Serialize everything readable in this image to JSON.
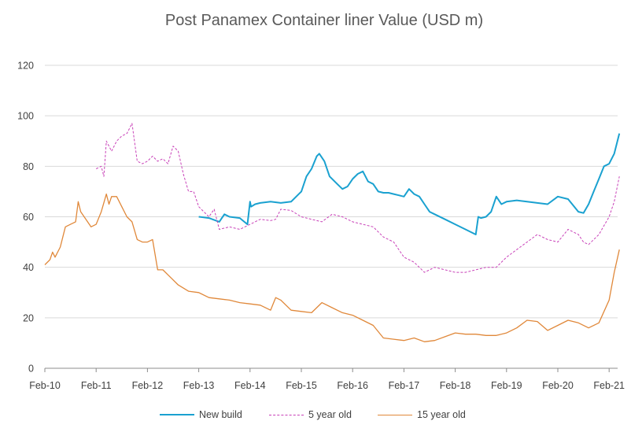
{
  "chart_data": {
    "type": "line",
    "title": "Post Panamex Container liner Value (USD m)",
    "ylim": [
      0,
      120
    ],
    "y_ticks": [
      "0",
      "20",
      "40",
      "60",
      "80",
      "100",
      "120"
    ],
    "x_tick_labels": [
      "Feb-10",
      "Feb-11",
      "Feb-12",
      "Feb-13",
      "Feb-14",
      "Feb-15",
      "Feb-16",
      "Feb-17",
      "Feb-18",
      "Feb-19",
      "Feb-20",
      "Feb-21"
    ],
    "xlim": [
      0,
      11.2
    ],
    "grid": "horizontal",
    "legend_position": "bottom",
    "series": [
      {
        "name": "New build",
        "color": "#1aa1d0",
        "style": "solid",
        "x": [
          3.0,
          3.2,
          3.4,
          3.5,
          3.6,
          3.8,
          3.95,
          4.0,
          4.02,
          4.1,
          4.2,
          4.4,
          4.6,
          4.8,
          5.0,
          5.1,
          5.2,
          5.3,
          5.35,
          5.45,
          5.55,
          5.7,
          5.8,
          5.9,
          6.0,
          6.1,
          6.2,
          6.3,
          6.4,
          6.5,
          6.6,
          6.7,
          6.8,
          6.9,
          7.0,
          7.1,
          7.2,
          7.3,
          7.4,
          7.5,
          7.6,
          7.8,
          8.0,
          8.2,
          8.4,
          8.45,
          8.5,
          8.6,
          8.7,
          8.8,
          8.9,
          9.0,
          9.2,
          9.4,
          9.6,
          9.8,
          10.0,
          10.2,
          10.4,
          10.5,
          10.6,
          10.7,
          10.8,
          10.9,
          11.0,
          11.1,
          11.2
        ],
        "y": [
          60,
          59.5,
          58,
          61,
          60,
          59.5,
          57,
          66,
          64,
          65,
          65.5,
          66,
          65.5,
          66,
          70,
          76,
          79,
          84,
          85,
          82,
          76,
          73,
          71,
          72,
          75,
          77,
          78,
          74,
          73,
          70,
          69.5,
          69.5,
          69,
          68.5,
          68,
          71,
          69,
          68,
          65,
          62,
          61,
          59,
          57,
          55,
          53,
          60,
          59.5,
          60,
          62,
          68,
          65,
          66,
          66.5,
          66,
          65.5,
          65,
          68,
          67,
          62,
          61.5,
          65,
          70,
          75,
          80,
          81,
          85,
          93
        ]
      },
      {
        "name": "5 year old",
        "color": "#c840b8",
        "style": "dashed",
        "x": [
          1.0,
          1.1,
          1.15,
          1.2,
          1.3,
          1.4,
          1.5,
          1.6,
          1.65,
          1.7,
          1.8,
          1.9,
          2.0,
          2.1,
          2.2,
          2.3,
          2.4,
          2.5,
          2.6,
          2.7,
          2.8,
          2.9,
          3.0,
          3.1,
          3.2,
          3.3,
          3.4,
          3.6,
          3.8,
          4.0,
          4.2,
          4.4,
          4.5,
          4.6,
          4.8,
          5.0,
          5.2,
          5.4,
          5.6,
          5.8,
          6.0,
          6.2,
          6.4,
          6.6,
          6.8,
          7.0,
          7.2,
          7.4,
          7.6,
          7.8,
          8.0,
          8.2,
          8.4,
          8.6,
          8.8,
          9.0,
          9.2,
          9.4,
          9.6,
          9.8,
          10.0,
          10.2,
          10.4,
          10.5,
          10.6,
          10.8,
          11.0,
          11.1,
          11.2
        ],
        "y": [
          79,
          80,
          76,
          90,
          86,
          90,
          92,
          93,
          95,
          97,
          82,
          81,
          82,
          84,
          82,
          83,
          81,
          88,
          86,
          77,
          70,
          70,
          64,
          62,
          60,
          63,
          55,
          56,
          55,
          57,
          59,
          58.5,
          59,
          63,
          62.5,
          60,
          59,
          58,
          61,
          60,
          58,
          57,
          56,
          52,
          50,
          44,
          42,
          38,
          40,
          39,
          38,
          38,
          39,
          40,
          40,
          44,
          47,
          50,
          53,
          51,
          50,
          55,
          53,
          50,
          49,
          53,
          60,
          66,
          76
        ]
      },
      {
        "name": "15 year old",
        "color": "#e0883a",
        "style": "solid",
        "x": [
          0.0,
          0.1,
          0.15,
          0.2,
          0.3,
          0.4,
          0.5,
          0.6,
          0.65,
          0.7,
          0.8,
          0.9,
          1.0,
          1.1,
          1.2,
          1.25,
          1.3,
          1.4,
          1.5,
          1.6,
          1.7,
          1.8,
          1.9,
          2.0,
          2.1,
          2.2,
          2.3,
          2.4,
          2.5,
          2.6,
          2.8,
          3.0,
          3.2,
          3.4,
          3.6,
          3.8,
          4.0,
          4.2,
          4.4,
          4.5,
          4.6,
          4.8,
          5.0,
          5.2,
          5.4,
          5.6,
          5.8,
          6.0,
          6.2,
          6.4,
          6.6,
          6.8,
          7.0,
          7.2,
          7.4,
          7.6,
          7.8,
          8.0,
          8.2,
          8.4,
          8.6,
          8.8,
          9.0,
          9.2,
          9.4,
          9.6,
          9.8,
          10.0,
          10.2,
          10.4,
          10.6,
          10.8,
          11.0,
          11.1,
          11.2
        ],
        "y": [
          41,
          43,
          46,
          44,
          48,
          56,
          57,
          58,
          66,
          62,
          59,
          56,
          57,
          62,
          69,
          65,
          68,
          68,
          64,
          60,
          58,
          51,
          50,
          50,
          51,
          39,
          39,
          37,
          35,
          33,
          30.5,
          30,
          28,
          27.5,
          27,
          26,
          25.5,
          25,
          23,
          28,
          27,
          23,
          22.5,
          22,
          26,
          24,
          22,
          21,
          19,
          17,
          12,
          11.5,
          11,
          12,
          10.5,
          11,
          12.5,
          14,
          13.5,
          13.5,
          13,
          13,
          14,
          16,
          19,
          18.5,
          15,
          17,
          19,
          18,
          16,
          18,
          27,
          38,
          47
        ]
      }
    ]
  }
}
